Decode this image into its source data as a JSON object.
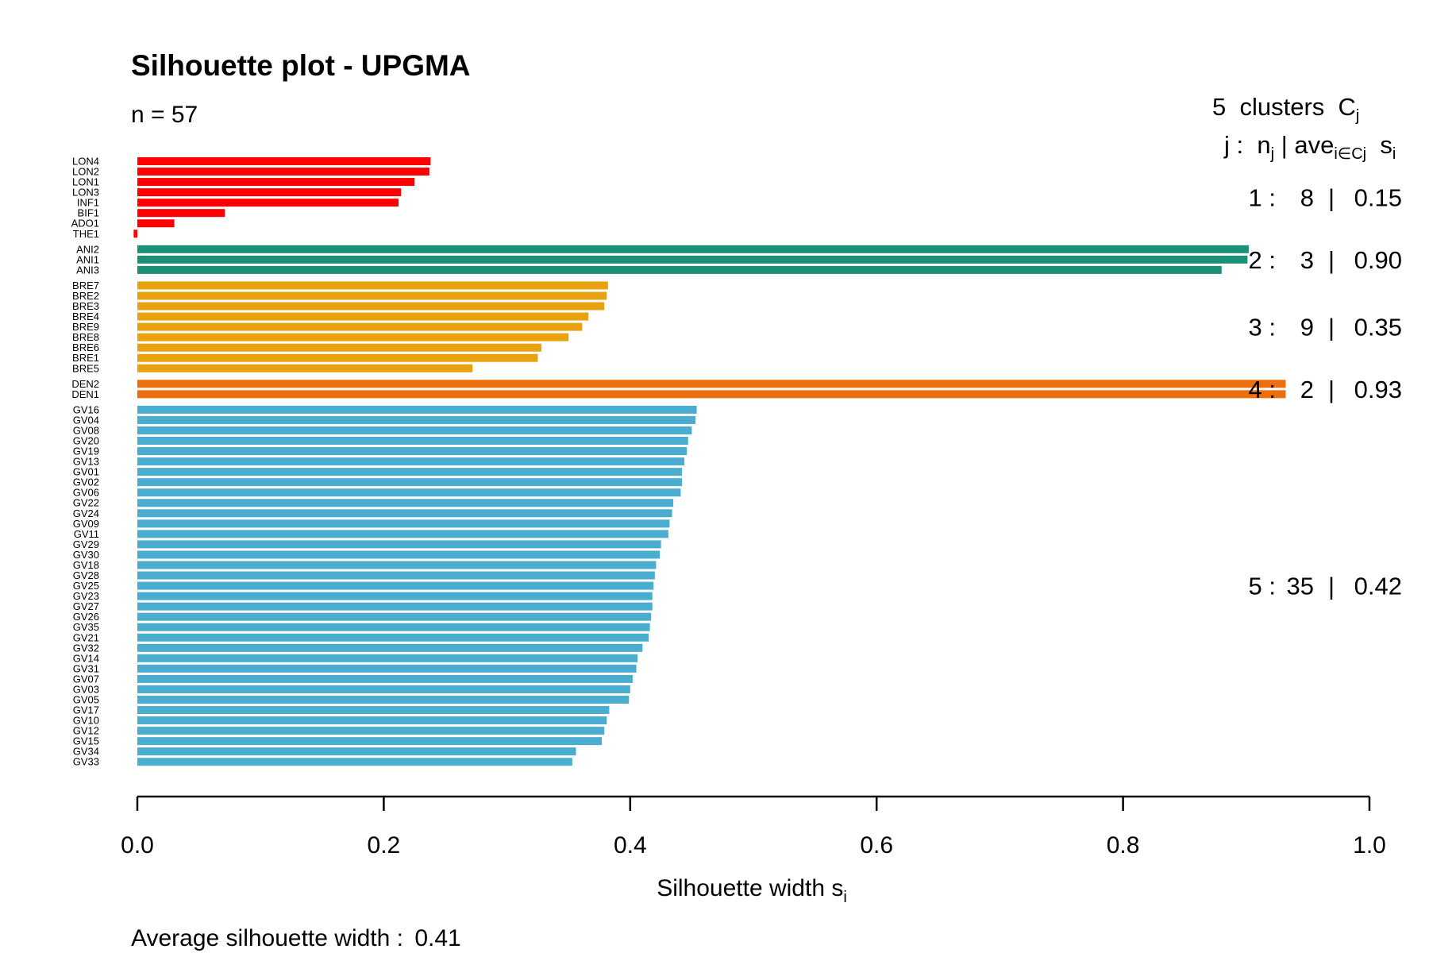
{
  "title": "Silhouette plot - UPGMA",
  "n_label": "n = 57",
  "header": {
    "clusters_count": "5",
    "clusters_word": "clusters",
    "c_label": "C",
    "c_sub": "j",
    "j_label": "j :",
    "n_label": "n",
    "n_sub": "j",
    "sep": "|",
    "ave_label": "ave",
    "ave_sub": "i∈Cj",
    "s_label": "s",
    "s_sub": "i"
  },
  "footer": {
    "label": "Average silhouette width :",
    "value": "0.41"
  },
  "chart_data": {
    "type": "bar",
    "orientation": "horizontal",
    "title": "Silhouette plot - UPGMA",
    "xlabel": "Silhouette width s",
    "xlabel_sub": "i",
    "xlim": [
      0,
      1
    ],
    "xticks": [
      "0.0",
      "0.2",
      "0.4",
      "0.6",
      "0.8",
      "1.0"
    ],
    "grid": false,
    "clusters": [
      {
        "id": 1,
        "size": 8,
        "size_label": "8",
        "avg": "0.15",
        "id_label": "1 :",
        "color": "#ff0000",
        "labels": [
          "LON4",
          "LON2",
          "LON1",
          "LON3",
          "INF1",
          "BIF1",
          "ADO1",
          "THE1"
        ],
        "values": [
          0.238,
          0.237,
          0.225,
          0.214,
          0.212,
          0.071,
          0.03,
          -0.003
        ]
      },
      {
        "id": 2,
        "size": 3,
        "size_label": "3",
        "avg": "0.90",
        "id_label": "2 :",
        "color": "#1b9077",
        "labels": [
          "ANI2",
          "ANI1",
          "ANI3"
        ],
        "values": [
          0.902,
          0.901,
          0.88
        ]
      },
      {
        "id": 3,
        "size": 9,
        "size_label": "9",
        "avg": "0.35",
        "id_label": "3 :",
        "color": "#e9a20f",
        "labels": [
          "BRE7",
          "BRE2",
          "BRE3",
          "BRE4",
          "BRE9",
          "BRE8",
          "BRE6",
          "BRE1",
          "BRE5"
        ],
        "values": [
          0.382,
          0.381,
          0.379,
          0.366,
          0.361,
          0.35,
          0.328,
          0.325,
          0.272
        ]
      },
      {
        "id": 4,
        "size": 2,
        "size_label": "2",
        "avg": "0.93",
        "id_label": "4 :",
        "color": "#ec6e0c",
        "labels": [
          "DEN2",
          "DEN1"
        ],
        "values": [
          0.932,
          0.932
        ]
      },
      {
        "id": 5,
        "size": 35,
        "size_label": "35",
        "avg": "0.42",
        "id_label": "5 :",
        "color": "#4aadcf",
        "labels": [
          "GV16",
          "GV04",
          "GV08",
          "GV20",
          "GV19",
          "GV13",
          "GV01",
          "GV02",
          "GV06",
          "GV22",
          "GV24",
          "GV09",
          "GV11",
          "GV29",
          "GV30",
          "GV18",
          "GV28",
          "GV25",
          "GV23",
          "GV27",
          "GV26",
          "GV35",
          "GV21",
          "GV32",
          "GV14",
          "GV31",
          "GV07",
          "GV03",
          "GV05",
          "GV17",
          "GV10",
          "GV12",
          "GV15",
          "GV34",
          "GV33"
        ],
        "values": [
          0.454,
          0.453,
          0.45,
          0.447,
          0.446,
          0.444,
          0.442,
          0.442,
          0.441,
          0.435,
          0.434,
          0.432,
          0.431,
          0.425,
          0.424,
          0.421,
          0.42,
          0.419,
          0.418,
          0.418,
          0.417,
          0.416,
          0.415,
          0.41,
          0.406,
          0.405,
          0.402,
          0.4,
          0.399,
          0.383,
          0.381,
          0.379,
          0.377,
          0.356,
          0.353
        ]
      }
    ]
  }
}
